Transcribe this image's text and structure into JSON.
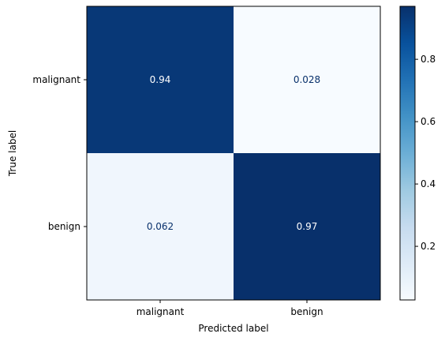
{
  "chart_data": {
    "type": "heatmap",
    "title": "",
    "xlabel": "Predicted label",
    "ylabel": "True label",
    "x_categories": [
      "malignant",
      "benign"
    ],
    "y_categories": [
      "malignant",
      "benign"
    ],
    "values": [
      [
        0.94,
        0.028
      ],
      [
        0.062,
        0.97
      ]
    ],
    "cell_labels": [
      [
        "0.94",
        "0.028"
      ],
      [
        "0.062",
        "0.97"
      ]
    ],
    "color_range": [
      0.028,
      0.97
    ],
    "colormap": "Blues",
    "colorbar_ticks": [
      0.2,
      0.4,
      0.6,
      0.8
    ],
    "colorbar_tick_labels": [
      "0.2",
      "0.4",
      "0.6",
      "0.8"
    ],
    "grid": false
  }
}
